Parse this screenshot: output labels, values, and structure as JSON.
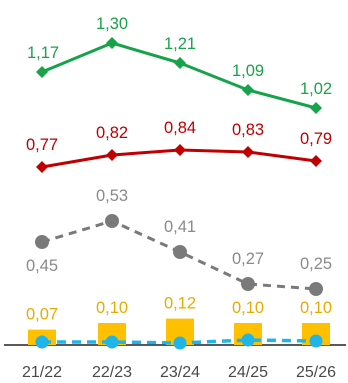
{
  "chart_data": {
    "type": "line",
    "categories": [
      "21/22",
      "22/23",
      "23/24",
      "24/25",
      "25/26"
    ],
    "series": [
      {
        "kind": "line",
        "marker": "diamond",
        "dash": false,
        "color": "#16a34a",
        "label_color": "#1aa34a",
        "label_pos": "above",
        "values": [
          1.17,
          1.3,
          1.21,
          1.09,
          1.02
        ],
        "labels": [
          "1,17",
          "1,30",
          "1,21",
          "1,09",
          "1,02"
        ]
      },
      {
        "kind": "line",
        "marker": "diamond",
        "dash": false,
        "color": "#c00000",
        "label_color": "#c00000",
        "label_pos": "above",
        "values": [
          0.77,
          0.82,
          0.84,
          0.83,
          0.79
        ],
        "labels": [
          "0,77",
          "0,82",
          "0,84",
          "0,83",
          "0,79"
        ]
      },
      {
        "kind": "line",
        "marker": "circle",
        "dash": true,
        "color": "#7a7a7a",
        "label_color": "#8a8a8a",
        "label_pos": "mixed",
        "values": [
          0.45,
          0.53,
          0.41,
          0.27,
          0.25
        ],
        "labels": [
          "0,45",
          "0,53",
          "0,41",
          "0,27",
          "0,25"
        ]
      },
      {
        "kind": "bar",
        "color": "#ffc000",
        "label_color": "#e6ac00",
        "label_pos": "above",
        "values": [
          0.07,
          0.1,
          0.12,
          0.1,
          0.1
        ],
        "labels": [
          "0,07",
          "0,10",
          "0,12",
          "0,10",
          "0,10"
        ]
      },
      {
        "kind": "line",
        "marker": "circle",
        "dash": true,
        "color": "#1fb5e8",
        "label_pos": "none",
        "values": [
          0.02,
          0.02,
          0.02,
          0.03,
          0.03
        ],
        "labels": []
      }
    ],
    "xlabel": "",
    "ylabel": "",
    "grid": false,
    "legend": "none"
  }
}
